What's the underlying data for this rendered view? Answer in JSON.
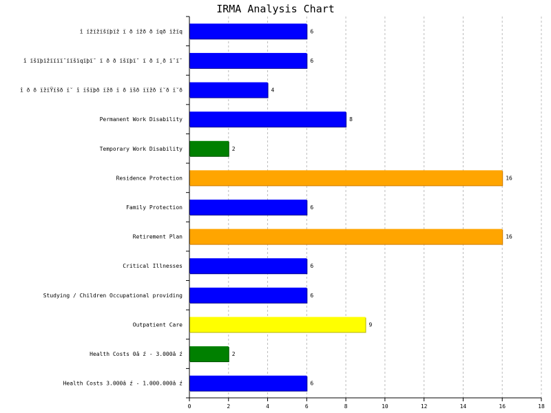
{
  "chart_data": {
    "type": "bar",
    "orientation": "horizontal",
    "title": "IRMA Analysis Chart",
    "xlabel": "",
    "ylabel": "",
    "xlim": [
      0,
      18
    ],
    "x_ticks": [
      0,
      2,
      4,
      6,
      8,
      10,
      12,
      14,
      16,
      18
    ],
    "grid": "vertical dashed",
    "categories": [
      "î ïžïžïšïþïž ï ð ïžð ð ïqð ïžïq",
      "î ïšïþïžïïïï˘ïïšïqïþï˘ ï ð ð ïšïþï˘ ï ð ï¸ð ï˘ï˘",
      "î ð ð ïžïŸïšð ï˘ î ïšïþð ïžð  ï ð ïšð ïïžð ï˘ð ï˘ð",
      "Permanent Work Disability",
      "Temporary Work Disability",
      "Residence Protection",
      "Family Protection",
      "Retirement Plan",
      "Critical Illnesses",
      "Studying / Children Occupational providing",
      "Outpatient Care",
      "Health Costs 0â ź - 3.000â ź",
      "Health Costs 3.000â ź - 1.000.000â ź"
    ],
    "values": [
      6,
      6,
      4,
      8,
      2,
      16,
      6,
      16,
      6,
      6,
      9,
      2,
      6
    ],
    "bar_colors": [
      "#0000ff",
      "#0000ff",
      "#0000ff",
      "#0000ff",
      "#008000",
      "#ffa500",
      "#0000ff",
      "#ffa500",
      "#0000ff",
      "#0000ff",
      "#ffff00",
      "#008000",
      "#0000ff"
    ],
    "bar_edge_colors": [
      "#00008b",
      "#00008b",
      "#00008b",
      "#00008b",
      "#004d00",
      "#cc7a00",
      "#00008b",
      "#cc7a00",
      "#00008b",
      "#00008b",
      "#b3b300",
      "#004d00",
      "#00008b"
    ]
  }
}
